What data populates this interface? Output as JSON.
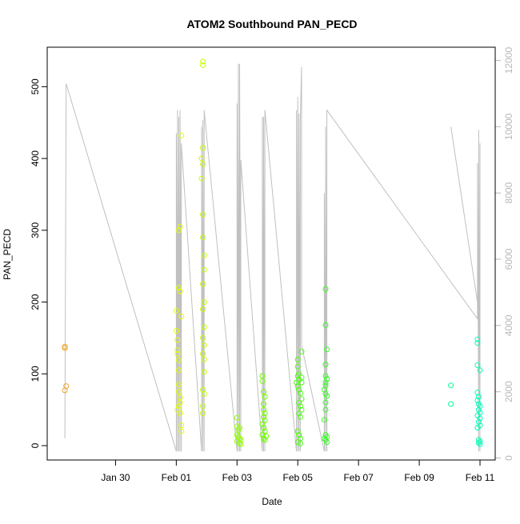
{
  "chart_data": {
    "type": "scatter",
    "title": "ATOM2 Southbound PAN_PECD",
    "xlabel": "Date",
    "ylabel": "PAN_PECD",
    "xlim": [
      "2016-01-27T18:00",
      "2016-02-11T12:00"
    ],
    "ylim": [
      -20,
      555
    ],
    "y2lim": [
      -60,
      12400
    ],
    "x_ticks": [
      {
        "label": "Jan 30",
        "date": "2016-01-30"
      },
      {
        "label": "Feb 01",
        "date": "2016-02-01"
      },
      {
        "label": "Feb 03",
        "date": "2016-02-03"
      },
      {
        "label": "Feb 05",
        "date": "2016-02-05"
      },
      {
        "label": "Feb 07",
        "date": "2016-02-07"
      },
      {
        "label": "Feb 09",
        "date": "2016-02-09"
      },
      {
        "label": "Feb 11",
        "date": "2016-02-11"
      }
    ],
    "y_ticks": [
      "0",
      "100",
      "200",
      "300",
      "400",
      "500"
    ],
    "y2_ticks": [
      "0",
      "2000",
      "4000",
      "6000",
      "8000",
      "10000",
      "12000"
    ],
    "grid": false,
    "point_color_scale": [
      "#e8922e",
      "#ffff00",
      "#66ff00",
      "#00ff44",
      "#00ffcc"
    ],
    "points": [
      {
        "x": "2016-01-28T08:00",
        "y": 138
      },
      {
        "x": "2016-01-28T08:00",
        "y": 136
      },
      {
        "x": "2016-01-28T09:00",
        "y": 83
      },
      {
        "x": "2016-01-28T08:00",
        "y": 77
      },
      {
        "x": "2016-02-01T00:00",
        "y": 188
      },
      {
        "x": "2016-02-01T00:00",
        "y": 160
      },
      {
        "x": "2016-02-01T01:00",
        "y": 147
      },
      {
        "x": "2016-02-01T01:00",
        "y": 133
      },
      {
        "x": "2016-02-01T01:00",
        "y": 128
      },
      {
        "x": "2016-02-01T02:00",
        "y": 119
      },
      {
        "x": "2016-02-01T02:00",
        "y": 105
      },
      {
        "x": "2016-02-01T02:00",
        "y": 85
      },
      {
        "x": "2016-02-01T02:00",
        "y": 75
      },
      {
        "x": "2016-02-01T03:00",
        "y": 67
      },
      {
        "x": "2016-02-01T03:00",
        "y": 60
      },
      {
        "x": "2016-02-01T02:00",
        "y": 55
      },
      {
        "x": "2016-02-01T01:00",
        "y": 50
      },
      {
        "x": "2016-02-01T03:00",
        "y": 45
      },
      {
        "x": "2016-02-01T04:00",
        "y": 28
      },
      {
        "x": "2016-02-01T04:00",
        "y": 20
      },
      {
        "x": "2016-02-01T02:00",
        "y": 220
      },
      {
        "x": "2016-02-01T03:00",
        "y": 215
      },
      {
        "x": "2016-02-01T02:00",
        "y": 300
      },
      {
        "x": "2016-02-01T03:00",
        "y": 305
      },
      {
        "x": "2016-02-01T04:00",
        "y": 180
      },
      {
        "x": "2016-02-01T04:00",
        "y": 432
      },
      {
        "x": "2016-02-01T21:00",
        "y": 535
      },
      {
        "x": "2016-02-01T21:00",
        "y": 530
      },
      {
        "x": "2016-02-01T21:00",
        "y": 415
      },
      {
        "x": "2016-02-01T20:00",
        "y": 400
      },
      {
        "x": "2016-02-01T21:00",
        "y": 392
      },
      {
        "x": "2016-02-01T20:00",
        "y": 372
      },
      {
        "x": "2016-02-01T21:00",
        "y": 322
      },
      {
        "x": "2016-02-01T21:00",
        "y": 290
      },
      {
        "x": "2016-02-01T22:00",
        "y": 265
      },
      {
        "x": "2016-02-01T22:00",
        "y": 245
      },
      {
        "x": "2016-02-01T21:00",
        "y": 225
      },
      {
        "x": "2016-02-01T22:00",
        "y": 200
      },
      {
        "x": "2016-02-01T21:00",
        "y": 190
      },
      {
        "x": "2016-02-01T22:00",
        "y": 165
      },
      {
        "x": "2016-02-01T21:00",
        "y": 150
      },
      {
        "x": "2016-02-01T22:00",
        "y": 140
      },
      {
        "x": "2016-02-01T21:00",
        "y": 128
      },
      {
        "x": "2016-02-01T22:00",
        "y": 120
      },
      {
        "x": "2016-02-01T22:00",
        "y": 103
      },
      {
        "x": "2016-02-01T21:00",
        "y": 78
      },
      {
        "x": "2016-02-01T22:00",
        "y": 72
      },
      {
        "x": "2016-02-01T21:00",
        "y": 55
      },
      {
        "x": "2016-02-01T21:00",
        "y": 45
      },
      {
        "x": "2016-02-03T00:00",
        "y": 39
      },
      {
        "x": "2016-02-03T00:00",
        "y": 27
      },
      {
        "x": "2016-02-03T01:00",
        "y": 22
      },
      {
        "x": "2016-02-03T02:00",
        "y": 25
      },
      {
        "x": "2016-02-03T00:00",
        "y": 15
      },
      {
        "x": "2016-02-03T01:00",
        "y": 12
      },
      {
        "x": "2016-02-03T02:00",
        "y": 10
      },
      {
        "x": "2016-02-03T03:00",
        "y": 8
      },
      {
        "x": "2016-02-03T00:00",
        "y": 6
      },
      {
        "x": "2016-02-03T02:00",
        "y": 4
      },
      {
        "x": "2016-02-03T03:00",
        "y": 2
      },
      {
        "x": "2016-02-03T20:00",
        "y": 97
      },
      {
        "x": "2016-02-03T20:00",
        "y": 90
      },
      {
        "x": "2016-02-03T21:00",
        "y": 75
      },
      {
        "x": "2016-02-03T22:00",
        "y": 68
      },
      {
        "x": "2016-02-03T21:00",
        "y": 58
      },
      {
        "x": "2016-02-03T21:00",
        "y": 50
      },
      {
        "x": "2016-02-03T22:00",
        "y": 45
      },
      {
        "x": "2016-02-03T21:00",
        "y": 40
      },
      {
        "x": "2016-02-03T22:00",
        "y": 35
      },
      {
        "x": "2016-02-03T20:00",
        "y": 30
      },
      {
        "x": "2016-02-03T21:00",
        "y": 25
      },
      {
        "x": "2016-02-03T22:00",
        "y": 20
      },
      {
        "x": "2016-02-03T20:00",
        "y": 15
      },
      {
        "x": "2016-02-03T21:00",
        "y": 10
      },
      {
        "x": "2016-02-03T22:00",
        "y": 8
      },
      {
        "x": "2016-02-03T23:00",
        "y": 13
      },
      {
        "x": "2016-02-05T00:00",
        "y": 120
      },
      {
        "x": "2016-02-05T00:00",
        "y": 110
      },
      {
        "x": "2016-02-05T01:00",
        "y": 100
      },
      {
        "x": "2016-02-05T00:00",
        "y": 97
      },
      {
        "x": "2016-02-05T01:00",
        "y": 92
      },
      {
        "x": "2016-02-04T23:00",
        "y": 88
      },
      {
        "x": "2016-02-05T00:00",
        "y": 83
      },
      {
        "x": "2016-02-05T01:00",
        "y": 78
      },
      {
        "x": "2016-02-05T02:00",
        "y": 73
      },
      {
        "x": "2016-02-05T01:00",
        "y": 60
      },
      {
        "x": "2016-02-05T02:00",
        "y": 55
      },
      {
        "x": "2016-02-05T01:00",
        "y": 45
      },
      {
        "x": "2016-02-05T02:00",
        "y": 40
      },
      {
        "x": "2016-02-05T00:00",
        "y": 20
      },
      {
        "x": "2016-02-05T01:00",
        "y": 15
      },
      {
        "x": "2016-02-05T02:00",
        "y": 10
      },
      {
        "x": "2016-02-05T00:00",
        "y": 5
      },
      {
        "x": "2016-02-05T02:00",
        "y": 3
      },
      {
        "x": "2016-02-05T03:00",
        "y": 131
      },
      {
        "x": "2016-02-05T03:00",
        "y": 95
      },
      {
        "x": "2016-02-05T03:00",
        "y": 88
      },
      {
        "x": "2016-02-05T03:00",
        "y": 65
      },
      {
        "x": "2016-02-05T03:00",
        "y": 50
      },
      {
        "x": "2016-02-05T22:00",
        "y": 218
      },
      {
        "x": "2016-02-05T22:00",
        "y": 168
      },
      {
        "x": "2016-02-05T23:00",
        "y": 134
      },
      {
        "x": "2016-02-05T22:00",
        "y": 113
      },
      {
        "x": "2016-02-05T22:00",
        "y": 97
      },
      {
        "x": "2016-02-05T23:00",
        "y": 93
      },
      {
        "x": "2016-02-05T22:00",
        "y": 88
      },
      {
        "x": "2016-02-05T22:00",
        "y": 84
      },
      {
        "x": "2016-02-05T21:00",
        "y": 78
      },
      {
        "x": "2016-02-05T22:00",
        "y": 72
      },
      {
        "x": "2016-02-05T23:00",
        "y": 69
      },
      {
        "x": "2016-02-05T22:00",
        "y": 60
      },
      {
        "x": "2016-02-05T22:00",
        "y": 50
      },
      {
        "x": "2016-02-05T21:00",
        "y": 36
      },
      {
        "x": "2016-02-05T22:00",
        "y": 15
      },
      {
        "x": "2016-02-05T23:00",
        "y": 12
      },
      {
        "x": "2016-02-05T21:00",
        "y": 10
      },
      {
        "x": "2016-02-05T22:00",
        "y": 8
      },
      {
        "x": "2016-02-05T23:00",
        "y": 5
      },
      {
        "x": "2016-02-10T01:00",
        "y": 84
      },
      {
        "x": "2016-02-10T01:00",
        "y": 58
      },
      {
        "x": "2016-02-10T22:00",
        "y": 148
      },
      {
        "x": "2016-02-10T22:00",
        "y": 143
      },
      {
        "x": "2016-02-10T22:00",
        "y": 112
      },
      {
        "x": "2016-02-11T00:00",
        "y": 105
      },
      {
        "x": "2016-02-10T22:00",
        "y": 74
      },
      {
        "x": "2016-02-10T23:00",
        "y": 68
      },
      {
        "x": "2016-02-10T22:00",
        "y": 63
      },
      {
        "x": "2016-02-10T23:00",
        "y": 58
      },
      {
        "x": "2016-02-11T00:00",
        "y": 55
      },
      {
        "x": "2016-02-10T23:00",
        "y": 50
      },
      {
        "x": "2016-02-11T00:00",
        "y": 46
      },
      {
        "x": "2016-02-10T22:00",
        "y": 42
      },
      {
        "x": "2016-02-11T00:00",
        "y": 38
      },
      {
        "x": "2016-02-10T23:00",
        "y": 33
      },
      {
        "x": "2016-02-11T00:00",
        "y": 28
      },
      {
        "x": "2016-02-10T22:00",
        "y": 25
      },
      {
        "x": "2016-02-10T23:00",
        "y": 8
      },
      {
        "x": "2016-02-11T00:00",
        "y": 6
      },
      {
        "x": "2016-02-10T23:00",
        "y": 4
      },
      {
        "x": "2016-02-11T00:00",
        "y": 2
      }
    ],
    "altitude_line": {
      "color": "#c0c0c0",
      "points": [
        {
          "x": "2016-01-28T08:00",
          "y2": 600
        },
        {
          "x": "2016-01-28T09:00",
          "y2": 11300
        },
        {
          "x": "2016-02-01T00:00",
          "y2": 200
        },
        {
          "x": "2016-02-01T00:00",
          "y2": 9800
        },
        {
          "x": "2016-02-01T01:00",
          "y2": 200
        },
        {
          "x": "2016-02-01T01:00",
          "y2": 10500
        },
        {
          "x": "2016-02-01T02:00",
          "y2": 200
        },
        {
          "x": "2016-02-01T02:00",
          "y2": 10300
        },
        {
          "x": "2016-02-01T03:00",
          "y2": 200
        },
        {
          "x": "2016-02-01T03:00",
          "y2": 10500
        },
        {
          "x": "2016-02-01T04:00",
          "y2": 200
        },
        {
          "x": "2016-02-01T04:00",
          "y2": 9500
        },
        {
          "x": "2016-02-01T20:00",
          "y2": 200
        },
        {
          "x": "2016-02-01T20:00",
          "y2": 10000
        },
        {
          "x": "2016-02-01T21:00",
          "y2": 200
        },
        {
          "x": "2016-02-01T21:00",
          "y2": 10200
        },
        {
          "x": "2016-02-01T22:00",
          "y2": 200
        },
        {
          "x": "2016-02-01T22:00",
          "y2": 10500
        },
        {
          "x": "2016-02-03T00:00",
          "y2": 200
        },
        {
          "x": "2016-02-03T00:00",
          "y2": 10700
        },
        {
          "x": "2016-02-03T01:00",
          "y2": 200
        },
        {
          "x": "2016-02-03T01:00",
          "y2": 11900
        },
        {
          "x": "2016-02-03T02:00",
          "y2": 200
        },
        {
          "x": "2016-02-03T02:00",
          "y2": 11900
        },
        {
          "x": "2016-02-03T03:00",
          "y2": 200
        },
        {
          "x": "2016-02-03T03:00",
          "y2": 9000
        },
        {
          "x": "2016-02-03T20:00",
          "y2": 200
        },
        {
          "x": "2016-02-03T20:00",
          "y2": 10300
        },
        {
          "x": "2016-02-03T21:00",
          "y2": 200
        },
        {
          "x": "2016-02-03T21:00",
          "y2": 10300
        },
        {
          "x": "2016-02-03T22:00",
          "y2": 200
        },
        {
          "x": "2016-02-03T22:00",
          "y2": 10500
        },
        {
          "x": "2016-02-04T23:00",
          "y2": 200
        },
        {
          "x": "2016-02-04T23:00",
          "y2": 10500
        },
        {
          "x": "2016-02-05T00:00",
          "y2": 200
        },
        {
          "x": "2016-02-05T00:00",
          "y2": 10900
        },
        {
          "x": "2016-02-05T01:00",
          "y2": 200
        },
        {
          "x": "2016-02-05T01:00",
          "y2": 10400
        },
        {
          "x": "2016-02-05T02:00",
          "y2": 200
        },
        {
          "x": "2016-02-05T02:00",
          "y2": 10200
        },
        {
          "x": "2016-02-05T03:00",
          "y2": 11800
        },
        {
          "x": "2016-02-05T03:00",
          "y2": 3400
        },
        {
          "x": "2016-02-05T21:00",
          "y2": 200
        },
        {
          "x": "2016-02-05T21:00",
          "y2": 8000
        },
        {
          "x": "2016-02-05T22:00",
          "y2": 200
        },
        {
          "x": "2016-02-05T22:00",
          "y2": 10000
        },
        {
          "x": "2016-02-05T23:00",
          "y2": 200
        },
        {
          "x": "2016-02-05T23:00",
          "y2": 10500
        },
        {
          "x": "2016-02-10T22:00",
          "y2": 4200
        },
        {
          "x": "2016-02-10T22:00",
          "y2": 8900
        },
        {
          "x": "2016-02-10T23:00",
          "y2": 200
        },
        {
          "x": "2016-02-10T23:00",
          "y2": 9900
        },
        {
          "x": "2016-02-11T00:00",
          "y2": 200
        },
        {
          "x": "2016-02-11T00:00",
          "y2": 9500
        }
      ]
    },
    "altitude_line_isolated": [
      {
        "x": "2016-02-10T01:00",
        "y2": 10000
      },
      {
        "x": "2016-02-11T00:00",
        "y2": 4200
      }
    ]
  }
}
